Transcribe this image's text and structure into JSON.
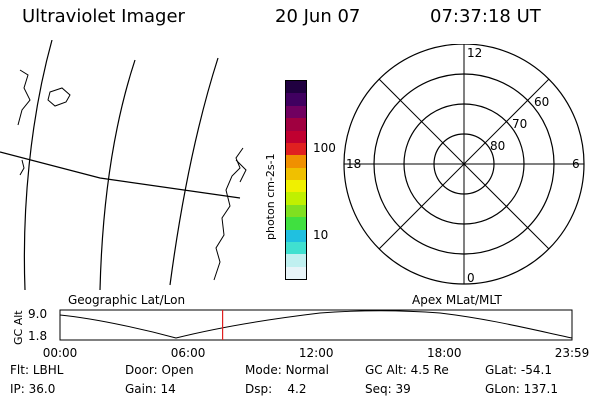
{
  "header": {
    "title": "Ultraviolet Imager",
    "date": "20 Jun 07",
    "time": "07:37:18 UT"
  },
  "colorbar": {
    "unit_label": "photon cm-2s-1",
    "ticks": [
      "100",
      "10"
    ],
    "colors": [
      "#e8f4f8",
      "#c0f0f0",
      "#40e0d0",
      "#20c0e0",
      "#40e040",
      "#80e020",
      "#c0f000",
      "#f0f000",
      "#f0c000",
      "#f09000",
      "#e02020",
      "#c00030",
      "#a00040",
      "#700060",
      "#400060",
      "#200040"
    ]
  },
  "polar_plot": {
    "mlt_labels": {
      "top": "12",
      "left": "18",
      "right": "6",
      "bottom": "0"
    },
    "lat_labels": [
      "60",
      "70",
      "80"
    ]
  },
  "map": {
    "label": "Geographic Lat/Lon"
  },
  "apex_label": "Apex MLat/MLT",
  "altitude_plot": {
    "ylabel": "GC Alt",
    "ytick_top": "9.0",
    "ytick_bottom": "1.8",
    "xticks": [
      "00:00",
      "06:00",
      "12:00",
      "18:00",
      "23:59"
    ],
    "marker_time": "07:37",
    "marker_color": "#e02020"
  },
  "info": {
    "row1": [
      {
        "label": "Flt:",
        "value": "LBHL"
      },
      {
        "label": "Door:",
        "value": "Open"
      },
      {
        "label": "Mode:",
        "value": "Normal"
      },
      {
        "label": "GC Alt:",
        "value": "4.5 Re"
      },
      {
        "label": "GLat:",
        "value": "-54.1"
      }
    ],
    "row2": [
      {
        "label": "IP:",
        "value": "36.0"
      },
      {
        "label": "Gain:",
        "value": "14"
      },
      {
        "label": "Dsp:",
        "value": "4.2"
      },
      {
        "label": "Seq:",
        "value": "39"
      },
      {
        "label": "GLon:",
        "value": "137.1"
      }
    ]
  }
}
